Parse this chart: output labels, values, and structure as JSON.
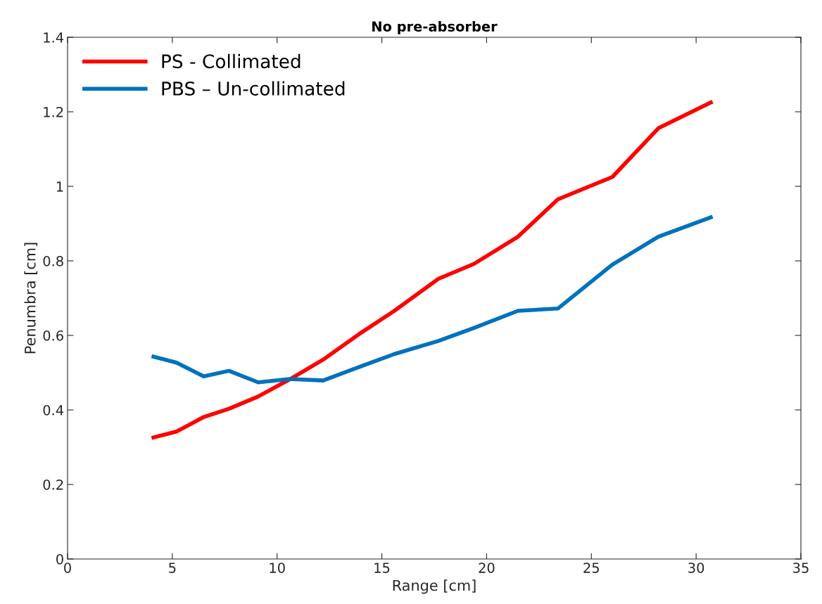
{
  "chart_data": {
    "type": "line",
    "title": "No pre-absorber",
    "xlabel": "Range [cm]",
    "ylabel": "Penumbra [cm]",
    "xlim": [
      0,
      35
    ],
    "xticks": [
      0,
      5,
      10,
      15,
      20,
      25,
      30,
      35
    ],
    "ylim": [
      0,
      1.4
    ],
    "yticks": [
      0,
      0.2,
      0.4,
      0.6,
      0.8,
      1,
      1.2,
      1.4
    ],
    "grid": false,
    "legend": "top left",
    "marker": "none",
    "line_style": "solid",
    "x": [
      4.1,
      5.2,
      6.5,
      7.7,
      9.1,
      10.6,
      12.2,
      13.9,
      15.6,
      17.7,
      19.4,
      21.5,
      23.4,
      26.0,
      28.2,
      30.7
    ],
    "series": [
      {
        "name": "PS - Collimated",
        "color": "#ff0000",
        "values": [
          0.326,
          0.342,
          0.381,
          0.403,
          0.436,
          0.482,
          0.535,
          0.603,
          0.666,
          0.752,
          0.792,
          0.865,
          0.965,
          1.025,
          1.156,
          1.225
        ]
      },
      {
        "name": "PBS – Un-collimated",
        "color": "#0072bd",
        "values": [
          0.543,
          0.527,
          0.49,
          0.505,
          0.474,
          0.483,
          0.479,
          0.515,
          0.55,
          0.585,
          0.62,
          0.666,
          0.672,
          0.79,
          0.865,
          0.917
        ]
      }
    ]
  }
}
